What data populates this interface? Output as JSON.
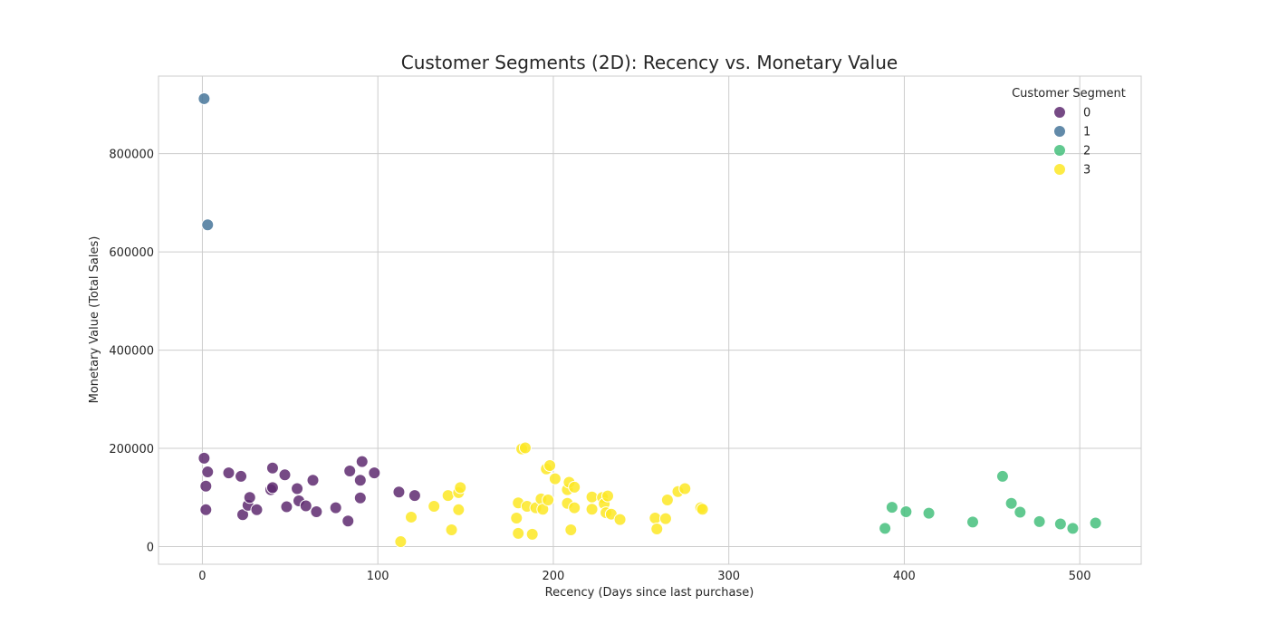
{
  "chart_data": {
    "type": "scatter",
    "title": "Customer Segments (2D): Recency vs. Monetary Value",
    "xlabel": "Recency (Days since last purchase)",
    "ylabel": "Monetary Value (Total Sales)",
    "xlim": [
      -25,
      535
    ],
    "ylim": [
      -36000,
      958000
    ],
    "xticks": [
      0,
      100,
      200,
      300,
      400,
      500
    ],
    "yticks": [
      0,
      200000,
      400000,
      600000,
      800000
    ],
    "grid": true,
    "legend": {
      "title": "Customer Segment",
      "position": "top-right"
    },
    "series": [
      {
        "name": "0",
        "color": "#5e2a70",
        "points": [
          [
            1,
            180000
          ],
          [
            3,
            152000
          ],
          [
            2,
            123000
          ],
          [
            2,
            75000
          ],
          [
            15,
            150000
          ],
          [
            22,
            143000
          ],
          [
            23,
            65000
          ],
          [
            26,
            84000
          ],
          [
            27,
            100000
          ],
          [
            31,
            75000
          ],
          [
            39,
            116000
          ],
          [
            40,
            160000
          ],
          [
            40,
            120000
          ],
          [
            47,
            146000
          ],
          [
            48,
            81000
          ],
          [
            54,
            118000
          ],
          [
            55,
            93000
          ],
          [
            59,
            83000
          ],
          [
            63,
            135000
          ],
          [
            65,
            71000
          ],
          [
            76,
            79000
          ],
          [
            83,
            52000
          ],
          [
            84,
            154000
          ],
          [
            90,
            135000
          ],
          [
            90,
            99000
          ],
          [
            91,
            173000
          ],
          [
            98,
            150000
          ],
          [
            112,
            111000
          ],
          [
            121,
            104000
          ]
        ]
      },
      {
        "name": "1",
        "color": "#46759a",
        "points": [
          [
            1,
            912000
          ],
          [
            3,
            655000
          ]
        ]
      },
      {
        "name": "2",
        "color": "#45bf7c",
        "points": [
          [
            389,
            37000
          ],
          [
            393,
            80000
          ],
          [
            401,
            71000
          ],
          [
            414,
            68000
          ],
          [
            439,
            50000
          ],
          [
            456,
            143000
          ],
          [
            461,
            88000
          ],
          [
            466,
            70000
          ],
          [
            477,
            51000
          ],
          [
            489,
            46000
          ],
          [
            496,
            37000
          ],
          [
            509,
            48000
          ]
        ]
      },
      {
        "name": "3",
        "color": "#fde725",
        "points": [
          [
            113,
            10000
          ],
          [
            119,
            60000
          ],
          [
            132,
            82000
          ],
          [
            140,
            104000
          ],
          [
            142,
            34000
          ],
          [
            146,
            75000
          ],
          [
            146,
            110000
          ],
          [
            147,
            120000
          ],
          [
            179,
            58000
          ],
          [
            180,
            27000
          ],
          [
            180,
            89000
          ],
          [
            182,
            199000
          ],
          [
            184,
            201000
          ],
          [
            185,
            82000
          ],
          [
            188,
            25000
          ],
          [
            190,
            79000
          ],
          [
            193,
            97000
          ],
          [
            194,
            76000
          ],
          [
            196,
            158000
          ],
          [
            197,
            95000
          ],
          [
            198,
            165000
          ],
          [
            201,
            138000
          ],
          [
            208,
            116000
          ],
          [
            208,
            88000
          ],
          [
            209,
            131000
          ],
          [
            210,
            34000
          ],
          [
            212,
            121000
          ],
          [
            212,
            79000
          ],
          [
            222,
            101000
          ],
          [
            222,
            76000
          ],
          [
            228,
            100000
          ],
          [
            229,
            87000
          ],
          [
            230,
            69000
          ],
          [
            231,
            103000
          ],
          [
            233,
            66000
          ],
          [
            238,
            55000
          ],
          [
            258,
            58000
          ],
          [
            259,
            36000
          ],
          [
            264,
            57000
          ],
          [
            265,
            95000
          ],
          [
            271,
            112000
          ],
          [
            275,
            118000
          ],
          [
            284,
            79000
          ],
          [
            285,
            76000
          ]
        ]
      }
    ]
  }
}
